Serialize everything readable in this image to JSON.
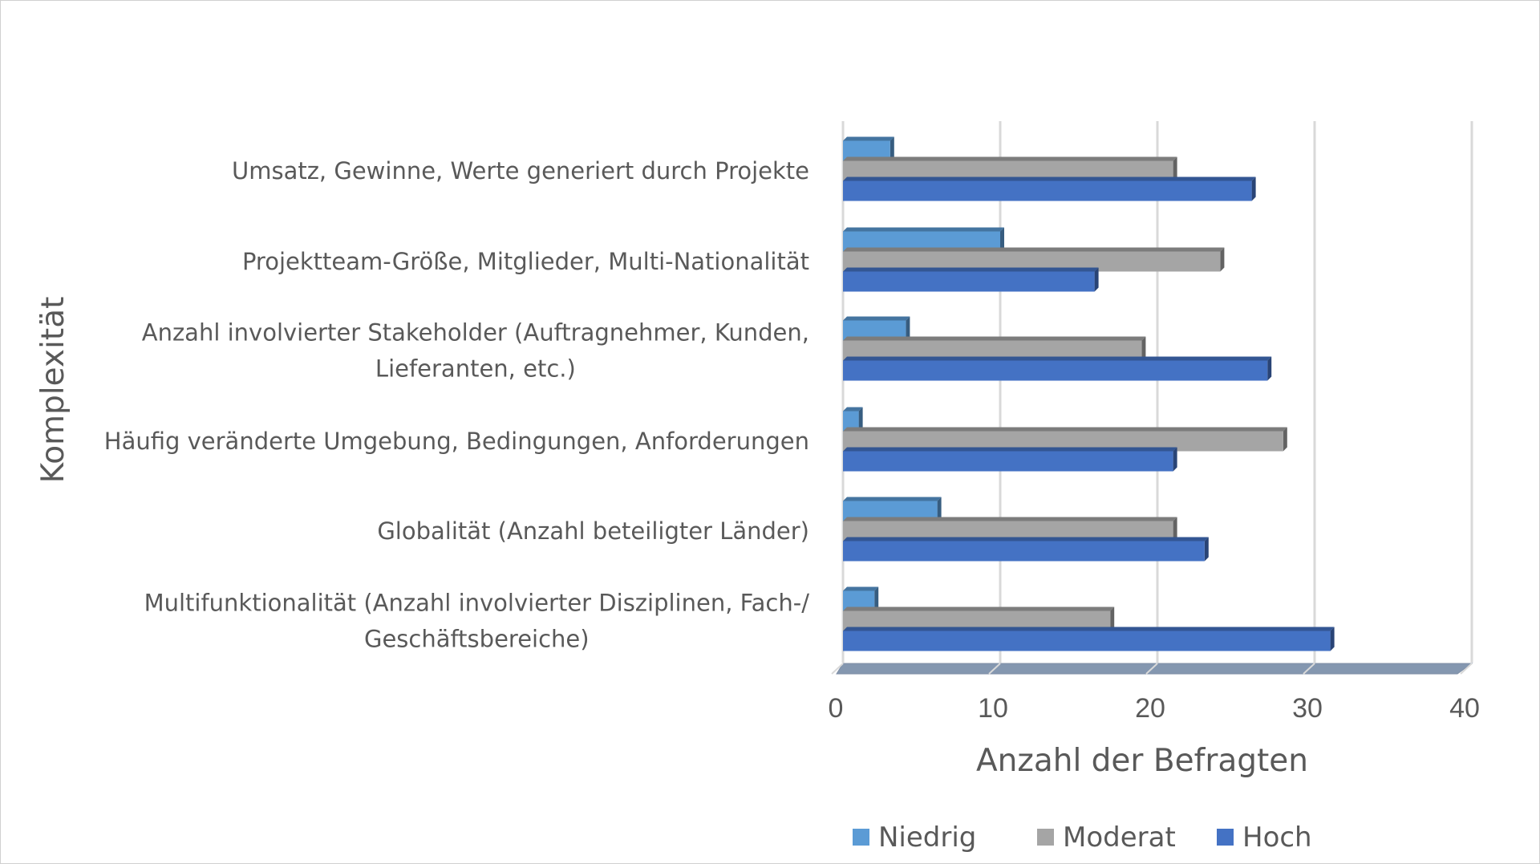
{
  "chart_data": {
    "type": "bar",
    "orientation": "horizontal",
    "style": "3d-clustered-bar",
    "categories": [
      [
        "Umsatz, Gewinne, Werte generiert durch Projekte"
      ],
      [
        "Projektteam-Größe, Mitglieder, Multi-Nationalität"
      ],
      [
        "Anzahl involvierter Stakeholder (Auftragnehmer, Kunden,",
        "Lieferanten, etc.)"
      ],
      [
        "Häufig veränderte Umgebung, Bedingungen, Anforderungen"
      ],
      [
        "Globalität (Anzahl beteiligter Länder)"
      ],
      [
        "Multifunktionalität (Anzahl involvierter Disziplinen, Fach-/",
        "Geschäftsbereiche)"
      ]
    ],
    "series": [
      {
        "name": "Niedrig",
        "color": "#5b9bd5",
        "values": [
          3,
          10,
          4,
          1,
          6,
          2
        ]
      },
      {
        "name": "Moderat",
        "color": "#a5a5a5",
        "values": [
          21,
          24,
          19,
          28,
          21,
          17
        ]
      },
      {
        "name": "Hoch",
        "color": "#4472c4",
        "values": [
          26,
          16,
          27,
          21,
          23,
          31
        ]
      }
    ],
    "xlabel": "Anzahl der Befragten",
    "ylabel": "Komplexität",
    "xlim": [
      0,
      40
    ],
    "xticks": [
      0,
      10,
      20,
      30,
      40
    ],
    "grid": true,
    "legend": "bottom"
  }
}
